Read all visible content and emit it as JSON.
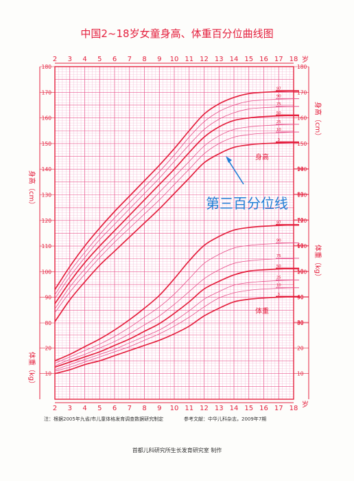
{
  "chart_data": {
    "type": "line",
    "title": "中国2~18岁女童身高、体重百分位曲线图",
    "x_tick_labels": [
      "2",
      "3",
      "4",
      "5",
      "6",
      "7",
      "8",
      "9",
      "10",
      "11",
      "12",
      "13",
      "14",
      "15",
      "16",
      "17",
      "18"
    ],
    "x_unit": "岁",
    "xlim": [
      2,
      18
    ],
    "height_axis": {
      "label": "身高（cm）",
      "ylim": [
        80,
        180
      ],
      "ticks": [
        80,
        90,
        100,
        110,
        120,
        130,
        140,
        150,
        160,
        170,
        180
      ]
    },
    "weight_axis": {
      "label": "体重（kg）",
      "ylim": [
        0,
        100
      ],
      "ticks": [
        10,
        20,
        30,
        40,
        50,
        60,
        70,
        80,
        90
      ]
    },
    "x": [
      2,
      3,
      4,
      5,
      6,
      7,
      8,
      9,
      10,
      11,
      12,
      13,
      14,
      15,
      16,
      17,
      18
    ],
    "height_series": [
      {
        "name": "97",
        "values": [
          93.0,
          102.0,
          110.0,
          117.0,
          123.5,
          129.5,
          135.5,
          141.5,
          148.0,
          155.0,
          161.5,
          165.5,
          168.0,
          169.5,
          170.0,
          170.3,
          170.5
        ]
      },
      {
        "name": "90",
        "values": [
          91.0,
          100.0,
          107.5,
          114.5,
          121.0,
          127.0,
          133.0,
          139.0,
          145.5,
          152.5,
          158.5,
          162.5,
          165.0,
          166.5,
          167.0,
          167.3,
          167.5
        ]
      },
      {
        "name": "75",
        "values": [
          89.5,
          98.0,
          105.5,
          112.5,
          118.5,
          124.5,
          130.5,
          136.5,
          143.0,
          149.5,
          155.5,
          159.5,
          162.0,
          163.5,
          164.0,
          164.3,
          164.5
        ]
      },
      {
        "name": "50",
        "values": [
          87.5,
          96.0,
          103.5,
          110.0,
          116.0,
          122.0,
          128.0,
          134.0,
          140.0,
          146.5,
          152.5,
          156.5,
          159.0,
          160.0,
          160.5,
          160.8,
          161.0
        ]
      },
      {
        "name": "25",
        "values": [
          85.5,
          94.0,
          101.0,
          107.5,
          113.5,
          119.5,
          125.0,
          131.0,
          137.0,
          143.0,
          149.0,
          153.0,
          155.5,
          156.5,
          157.0,
          157.3,
          157.5
        ]
      },
      {
        "name": "10",
        "values": [
          84.0,
          92.0,
          99.0,
          105.5,
          111.5,
          117.0,
          122.5,
          128.0,
          134.0,
          140.0,
          146.0,
          150.0,
          152.5,
          153.5,
          154.0,
          154.2,
          154.5
        ]
      },
      {
        "name": "3",
        "values": [
          80.5,
          89.0,
          96.0,
          102.5,
          108.0,
          113.5,
          119.0,
          124.5,
          130.5,
          136.5,
          142.5,
          146.0,
          148.5,
          149.5,
          150.0,
          150.2,
          150.5
        ]
      }
    ],
    "weight_series": [
      {
        "name": "97",
        "values": [
          15.0,
          17.5,
          20.5,
          23.5,
          27.0,
          31.0,
          35.5,
          40.5,
          47.0,
          54.0,
          60.0,
          63.5,
          66.0,
          67.0,
          67.5,
          67.8,
          68.0
        ]
      },
      {
        "name": "90",
        "values": [
          14.0,
          16.5,
          19.0,
          21.5,
          24.5,
          28.0,
          32.0,
          36.0,
          41.0,
          47.0,
          53.0,
          56.5,
          59.0,
          60.0,
          60.5,
          60.8,
          61.0
        ]
      },
      {
        "name": "75",
        "values": [
          13.0,
          15.5,
          17.5,
          20.0,
          22.5,
          25.5,
          29.0,
          32.5,
          37.0,
          42.0,
          47.0,
          50.5,
          53.0,
          54.0,
          54.5,
          54.8,
          55.0
        ]
      },
      {
        "name": "50",
        "values": [
          12.5,
          14.5,
          16.5,
          18.5,
          21.0,
          23.5,
          26.5,
          29.5,
          33.5,
          38.0,
          43.0,
          46.0,
          48.5,
          50.0,
          50.5,
          50.8,
          51.0
        ]
      },
      {
        "name": "25",
        "values": [
          11.5,
          13.5,
          15.5,
          17.5,
          19.5,
          22.0,
          24.5,
          27.0,
          30.5,
          34.5,
          39.0,
          42.0,
          44.5,
          45.5,
          46.0,
          46.3,
          46.5
        ]
      },
      {
        "name": "10",
        "values": [
          11.0,
          12.5,
          14.5,
          16.5,
          18.5,
          20.5,
          23.0,
          25.5,
          28.5,
          32.0,
          36.0,
          39.5,
          41.5,
          42.5,
          43.0,
          43.3,
          43.5
        ]
      },
      {
        "name": "3",
        "values": [
          10.0,
          11.5,
          13.5,
          15.0,
          17.0,
          19.0,
          21.0,
          23.0,
          25.5,
          28.5,
          32.5,
          35.5,
          38.0,
          39.0,
          39.5,
          39.8,
          40.0
        ]
      }
    ],
    "series_labels": {
      "height": "身高",
      "weight": "体重"
    },
    "annotation": {
      "text": "第三百分位线",
      "points_to": "height-3"
    },
    "line_color": "#e41e3c",
    "thin_line_color": "#e8508a",
    "grid_color": "#f2a8c8",
    "annotation_color": "#1f7ed6",
    "grid": true
  },
  "footer": {
    "note": "注：根据2005年九省/市儿童体格发育调查数据研究制定",
    "reference": "参考文献：中华儿科杂志，2009年7期",
    "producer": "首都儿科研究所生长发育研究室  制作"
  }
}
